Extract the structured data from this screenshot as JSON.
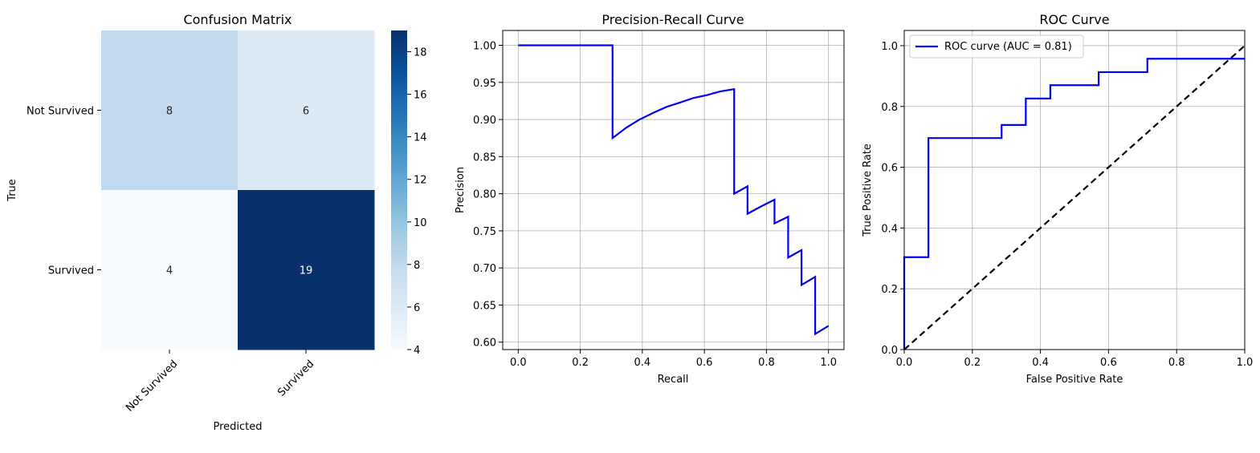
{
  "chart_data": [
    {
      "type": "heatmap",
      "title": "Confusion Matrix",
      "xlabel": "Predicted",
      "ylabel": "True",
      "x_categories": [
        "Not Survived",
        "Survived"
      ],
      "y_categories": [
        "Not Survived",
        "Survived"
      ],
      "matrix": [
        [
          8,
          6
        ],
        [
          4,
          19
        ]
      ],
      "colormap": "Blues",
      "colorbar_range": [
        4,
        19
      ],
      "colorbar_ticks": [
        4,
        6,
        8,
        10,
        12,
        14,
        16,
        18
      ]
    },
    {
      "type": "line",
      "title": "Precision-Recall Curve",
      "xlabel": "Recall",
      "ylabel": "Precision",
      "xlim": [
        -0.05,
        1.05
      ],
      "ylim": [
        0.59,
        1.02
      ],
      "xticks": [
        0.0,
        0.2,
        0.4,
        0.6,
        0.8,
        1.0
      ],
      "yticks": [
        0.6,
        0.65,
        0.7,
        0.75,
        0.8,
        0.85,
        0.9,
        0.95,
        1.0
      ],
      "grid": true,
      "series": [
        {
          "color": "#0000ff",
          "x": [
            0.0,
            0.304,
            0.304,
            0.348,
            0.391,
            0.435,
            0.478,
            0.522,
            0.565,
            0.609,
            0.652,
            0.696,
            0.696,
            0.739,
            0.739,
            0.783,
            0.826,
            0.826,
            0.87,
            0.87,
            0.913,
            0.913,
            0.957,
            0.957,
            1.0
          ],
          "y": [
            1.0,
            1.0,
            0.875,
            0.889,
            0.9,
            0.909,
            0.917,
            0.923,
            0.929,
            0.933,
            0.938,
            0.941,
            0.8,
            0.81,
            0.773,
            0.783,
            0.792,
            0.76,
            0.769,
            0.714,
            0.724,
            0.677,
            0.688,
            0.611,
            0.622
          ]
        }
      ]
    },
    {
      "type": "line",
      "title": "ROC Curve",
      "xlabel": "False Positive Rate",
      "ylabel": "True Positive Rate",
      "xlim": [
        0.0,
        1.0
      ],
      "ylim": [
        0.0,
        1.05
      ],
      "xticks": [
        0.0,
        0.2,
        0.4,
        0.6,
        0.8,
        1.0
      ],
      "yticks": [
        0.0,
        0.2,
        0.4,
        0.6,
        0.8,
        1.0
      ],
      "grid": true,
      "legend": "upper-left",
      "series": [
        {
          "name": "ROC curve (AUC = 0.81)",
          "color": "#0000ff",
          "x": [
            0.0,
            0.0,
            0.071,
            0.071,
            0.286,
            0.286,
            0.357,
            0.357,
            0.429,
            0.429,
            0.571,
            0.571,
            0.714,
            0.714,
            1.0
          ],
          "y": [
            0.0,
            0.304,
            0.304,
            0.696,
            0.696,
            0.739,
            0.739,
            0.826,
            0.826,
            0.87,
            0.87,
            0.913,
            0.913,
            0.957,
            0.957
          ]
        },
        {
          "color": "#000000",
          "dashed": true,
          "x": [
            0.0,
            1.0
          ],
          "y": [
            0.0,
            1.0
          ]
        }
      ]
    }
  ]
}
